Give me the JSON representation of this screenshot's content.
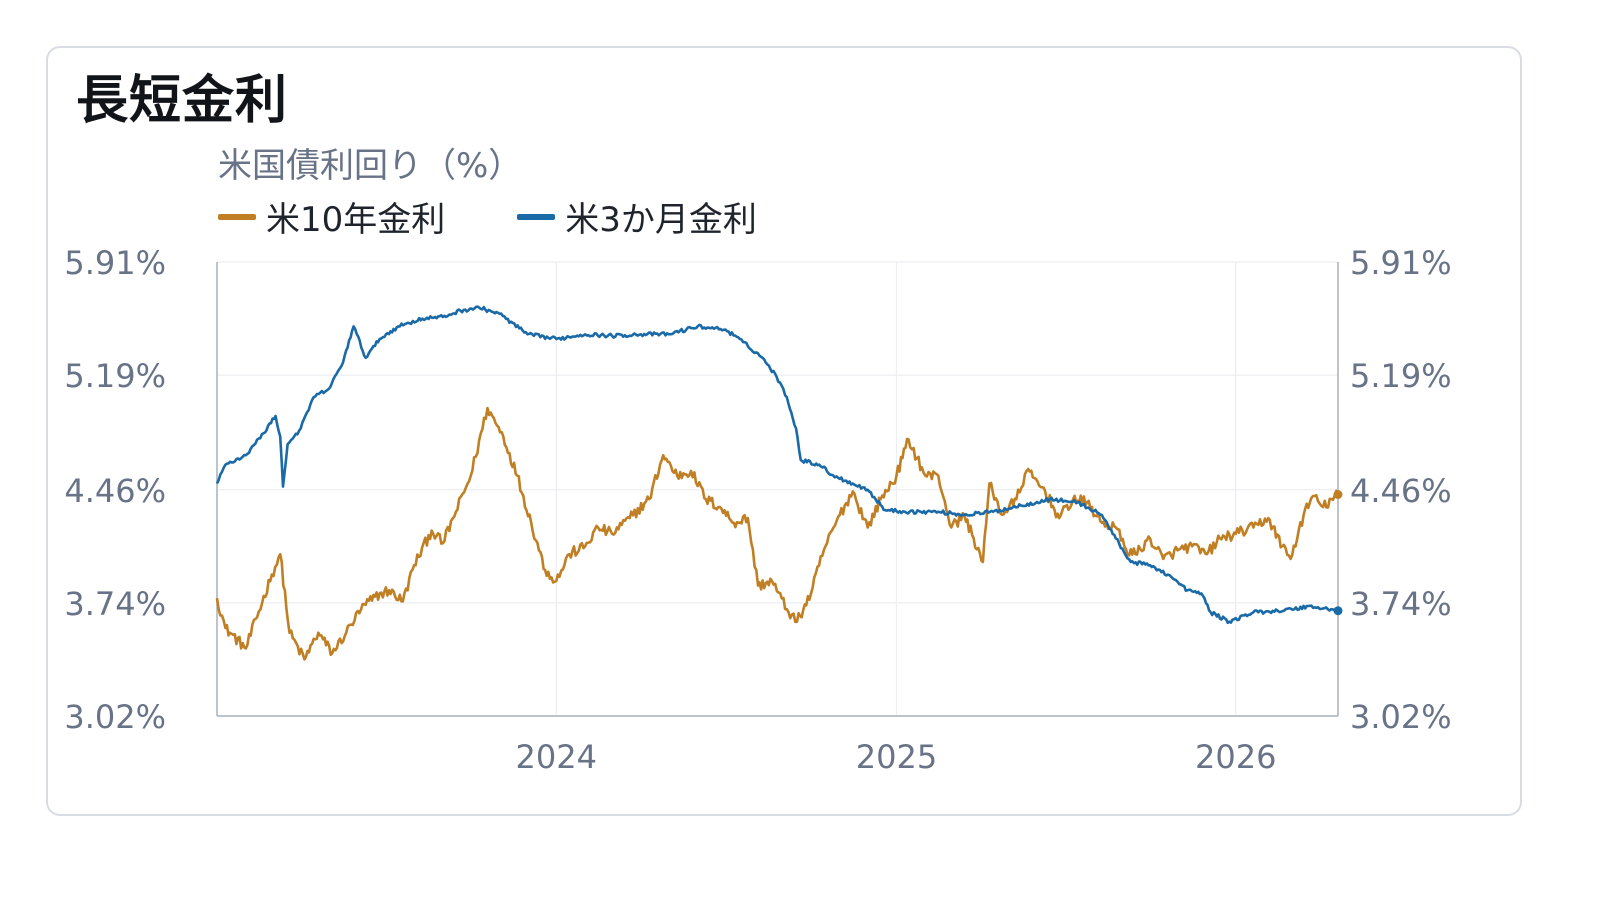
{
  "title": "長短金利",
  "chart_data": {
    "type": "line",
    "subtitle": "米国債利回り（%）",
    "ylim": [
      3.02,
      5.91
    ],
    "yticks": [
      5.91,
      5.19,
      4.46,
      3.74,
      3.02
    ],
    "ytick_labels": [
      "5.91%",
      "5.19%",
      "4.46%",
      "3.74%",
      "3.02%"
    ],
    "xlim": [
      "2023-01-01",
      "2026-04-21"
    ],
    "xticks": [
      "2024-01-01",
      "2025-01-01",
      "2026-01-01"
    ],
    "xtick_labels": [
      "2024",
      "2025",
      "2026"
    ],
    "grid": true,
    "legend_position": "top-left",
    "series": [
      {
        "name": "米10年金利",
        "color": "#c17f24",
        "points": [
          [
            "2023-01-01",
            3.77
          ],
          [
            "2023-01-10",
            3.58
          ],
          [
            "2023-02-01",
            3.45
          ],
          [
            "2023-03-01",
            3.92
          ],
          [
            "2023-03-10",
            4.05
          ],
          [
            "2023-03-20",
            3.55
          ],
          [
            "2023-04-05",
            3.38
          ],
          [
            "2023-04-20",
            3.55
          ],
          [
            "2023-05-05",
            3.42
          ],
          [
            "2023-05-20",
            3.55
          ],
          [
            "2023-06-05",
            3.7
          ],
          [
            "2023-06-20",
            3.78
          ],
          [
            "2023-07-05",
            3.82
          ],
          [
            "2023-07-20",
            3.75
          ],
          [
            "2023-08-01",
            3.98
          ],
          [
            "2023-08-20",
            4.2
          ],
          [
            "2023-09-01",
            4.12
          ],
          [
            "2023-09-15",
            4.32
          ],
          [
            "2023-10-01",
            4.55
          ],
          [
            "2023-10-19",
            4.98
          ],
          [
            "2023-11-05",
            4.8
          ],
          [
            "2023-11-20",
            4.55
          ],
          [
            "2023-12-05",
            4.25
          ],
          [
            "2023-12-20",
            3.95
          ],
          [
            "2024-01-01",
            3.88
          ],
          [
            "2024-01-15",
            4.05
          ],
          [
            "2024-02-01",
            4.1
          ],
          [
            "2024-02-15",
            4.22
          ],
          [
            "2024-03-01",
            4.18
          ],
          [
            "2024-03-20",
            4.28
          ],
          [
            "2024-04-10",
            4.4
          ],
          [
            "2024-04-25",
            4.68
          ],
          [
            "2024-05-10",
            4.55
          ],
          [
            "2024-05-25",
            4.58
          ],
          [
            "2024-06-10",
            4.4
          ],
          [
            "2024-06-25",
            4.35
          ],
          [
            "2024-07-10",
            4.25
          ],
          [
            "2024-07-25",
            4.28
          ],
          [
            "2024-08-05",
            3.85
          ],
          [
            "2024-08-20",
            3.88
          ],
          [
            "2024-09-05",
            3.7
          ],
          [
            "2024-09-16",
            3.62
          ],
          [
            "2024-10-01",
            3.8
          ],
          [
            "2024-10-15",
            4.08
          ],
          [
            "2024-11-01",
            4.3
          ],
          [
            "2024-11-15",
            4.45
          ],
          [
            "2024-12-01",
            4.22
          ],
          [
            "2024-12-15",
            4.4
          ],
          [
            "2025-01-01",
            4.55
          ],
          [
            "2025-01-14",
            4.78
          ],
          [
            "2025-02-01",
            4.55
          ],
          [
            "2025-02-15",
            4.55
          ],
          [
            "2025-03-01",
            4.22
          ],
          [
            "2025-03-15",
            4.3
          ],
          [
            "2025-04-04",
            4.0
          ],
          [
            "2025-04-11",
            4.5
          ],
          [
            "2025-04-25",
            4.3
          ],
          [
            "2025-05-10",
            4.4
          ],
          [
            "2025-05-21",
            4.58
          ],
          [
            "2025-06-10",
            4.45
          ],
          [
            "2025-06-25",
            4.28
          ],
          [
            "2025-07-10",
            4.4
          ],
          [
            "2025-07-25",
            4.38
          ],
          [
            "2025-08-10",
            4.25
          ],
          [
            "2025-08-25",
            4.22
          ],
          [
            "2025-09-05",
            4.08
          ],
          [
            "2025-09-15",
            4.05
          ],
          [
            "2025-10-01",
            4.15
          ],
          [
            "2025-10-15",
            4.02
          ],
          [
            "2025-11-01",
            4.08
          ],
          [
            "2025-11-15",
            4.1
          ],
          [
            "2025-12-01",
            4.05
          ],
          [
            "2025-12-15",
            4.15
          ],
          [
            "2026-01-01",
            4.18
          ],
          [
            "2026-01-20",
            4.22
          ],
          [
            "2026-02-05",
            4.28
          ],
          [
            "2026-02-20",
            4.1
          ],
          [
            "2026-03-01",
            4.02
          ],
          [
            "2026-03-15",
            4.3
          ],
          [
            "2026-03-25",
            4.42
          ],
          [
            "2026-04-05",
            4.35
          ],
          [
            "2026-04-21",
            4.43
          ]
        ]
      },
      {
        "name": "米3か月金利",
        "color": "#1a6aa8",
        "points": [
          [
            "2023-01-01",
            4.5
          ],
          [
            "2023-01-10",
            4.62
          ],
          [
            "2023-02-01",
            4.68
          ],
          [
            "2023-02-20",
            4.82
          ],
          [
            "2023-03-05",
            4.93
          ],
          [
            "2023-03-10",
            4.8
          ],
          [
            "2023-03-13",
            4.48
          ],
          [
            "2023-03-18",
            4.75
          ],
          [
            "2023-04-01",
            4.85
          ],
          [
            "2023-04-15",
            5.05
          ],
          [
            "2023-05-01",
            5.1
          ],
          [
            "2023-05-15",
            5.25
          ],
          [
            "2023-05-28",
            5.5
          ],
          [
            "2023-06-10",
            5.3
          ],
          [
            "2023-06-25",
            5.42
          ],
          [
            "2023-07-15",
            5.5
          ],
          [
            "2023-08-10",
            5.55
          ],
          [
            "2023-09-01",
            5.56
          ],
          [
            "2023-09-20",
            5.6
          ],
          [
            "2023-10-10",
            5.62
          ],
          [
            "2023-11-01",
            5.58
          ],
          [
            "2023-12-01",
            5.45
          ],
          [
            "2024-01-01",
            5.42
          ],
          [
            "2024-02-01",
            5.45
          ],
          [
            "2024-03-01",
            5.44
          ],
          [
            "2024-04-01",
            5.45
          ],
          [
            "2024-05-01",
            5.45
          ],
          [
            "2024-06-01",
            5.5
          ],
          [
            "2024-07-01",
            5.48
          ],
          [
            "2024-07-20",
            5.4
          ],
          [
            "2024-08-10",
            5.3
          ],
          [
            "2024-08-25",
            5.18
          ],
          [
            "2024-09-05",
            5.05
          ],
          [
            "2024-09-15",
            4.85
          ],
          [
            "2024-09-20",
            4.65
          ],
          [
            "2024-10-10",
            4.62
          ],
          [
            "2024-10-25",
            4.55
          ],
          [
            "2024-11-15",
            4.5
          ],
          [
            "2024-12-01",
            4.46
          ],
          [
            "2024-12-20",
            4.33
          ],
          [
            "2025-01-15",
            4.32
          ],
          [
            "2025-02-15",
            4.32
          ],
          [
            "2025-03-15",
            4.3
          ],
          [
            "2025-04-15",
            4.32
          ],
          [
            "2025-05-15",
            4.36
          ],
          [
            "2025-06-15",
            4.4
          ],
          [
            "2025-07-15",
            4.38
          ],
          [
            "2025-08-10",
            4.3
          ],
          [
            "2025-08-25",
            4.15
          ],
          [
            "2025-09-10",
            4.0
          ],
          [
            "2025-10-01",
            3.98
          ],
          [
            "2025-10-20",
            3.92
          ],
          [
            "2025-11-10",
            3.82
          ],
          [
            "2025-11-25",
            3.8
          ],
          [
            "2025-12-05",
            3.68
          ],
          [
            "2025-12-25",
            3.62
          ],
          [
            "2026-01-20",
            3.68
          ],
          [
            "2026-02-15",
            3.69
          ],
          [
            "2026-03-05",
            3.7
          ],
          [
            "2026-03-20",
            3.72
          ],
          [
            "2026-04-10",
            3.7
          ],
          [
            "2026-04-21",
            3.69
          ]
        ]
      }
    ]
  }
}
